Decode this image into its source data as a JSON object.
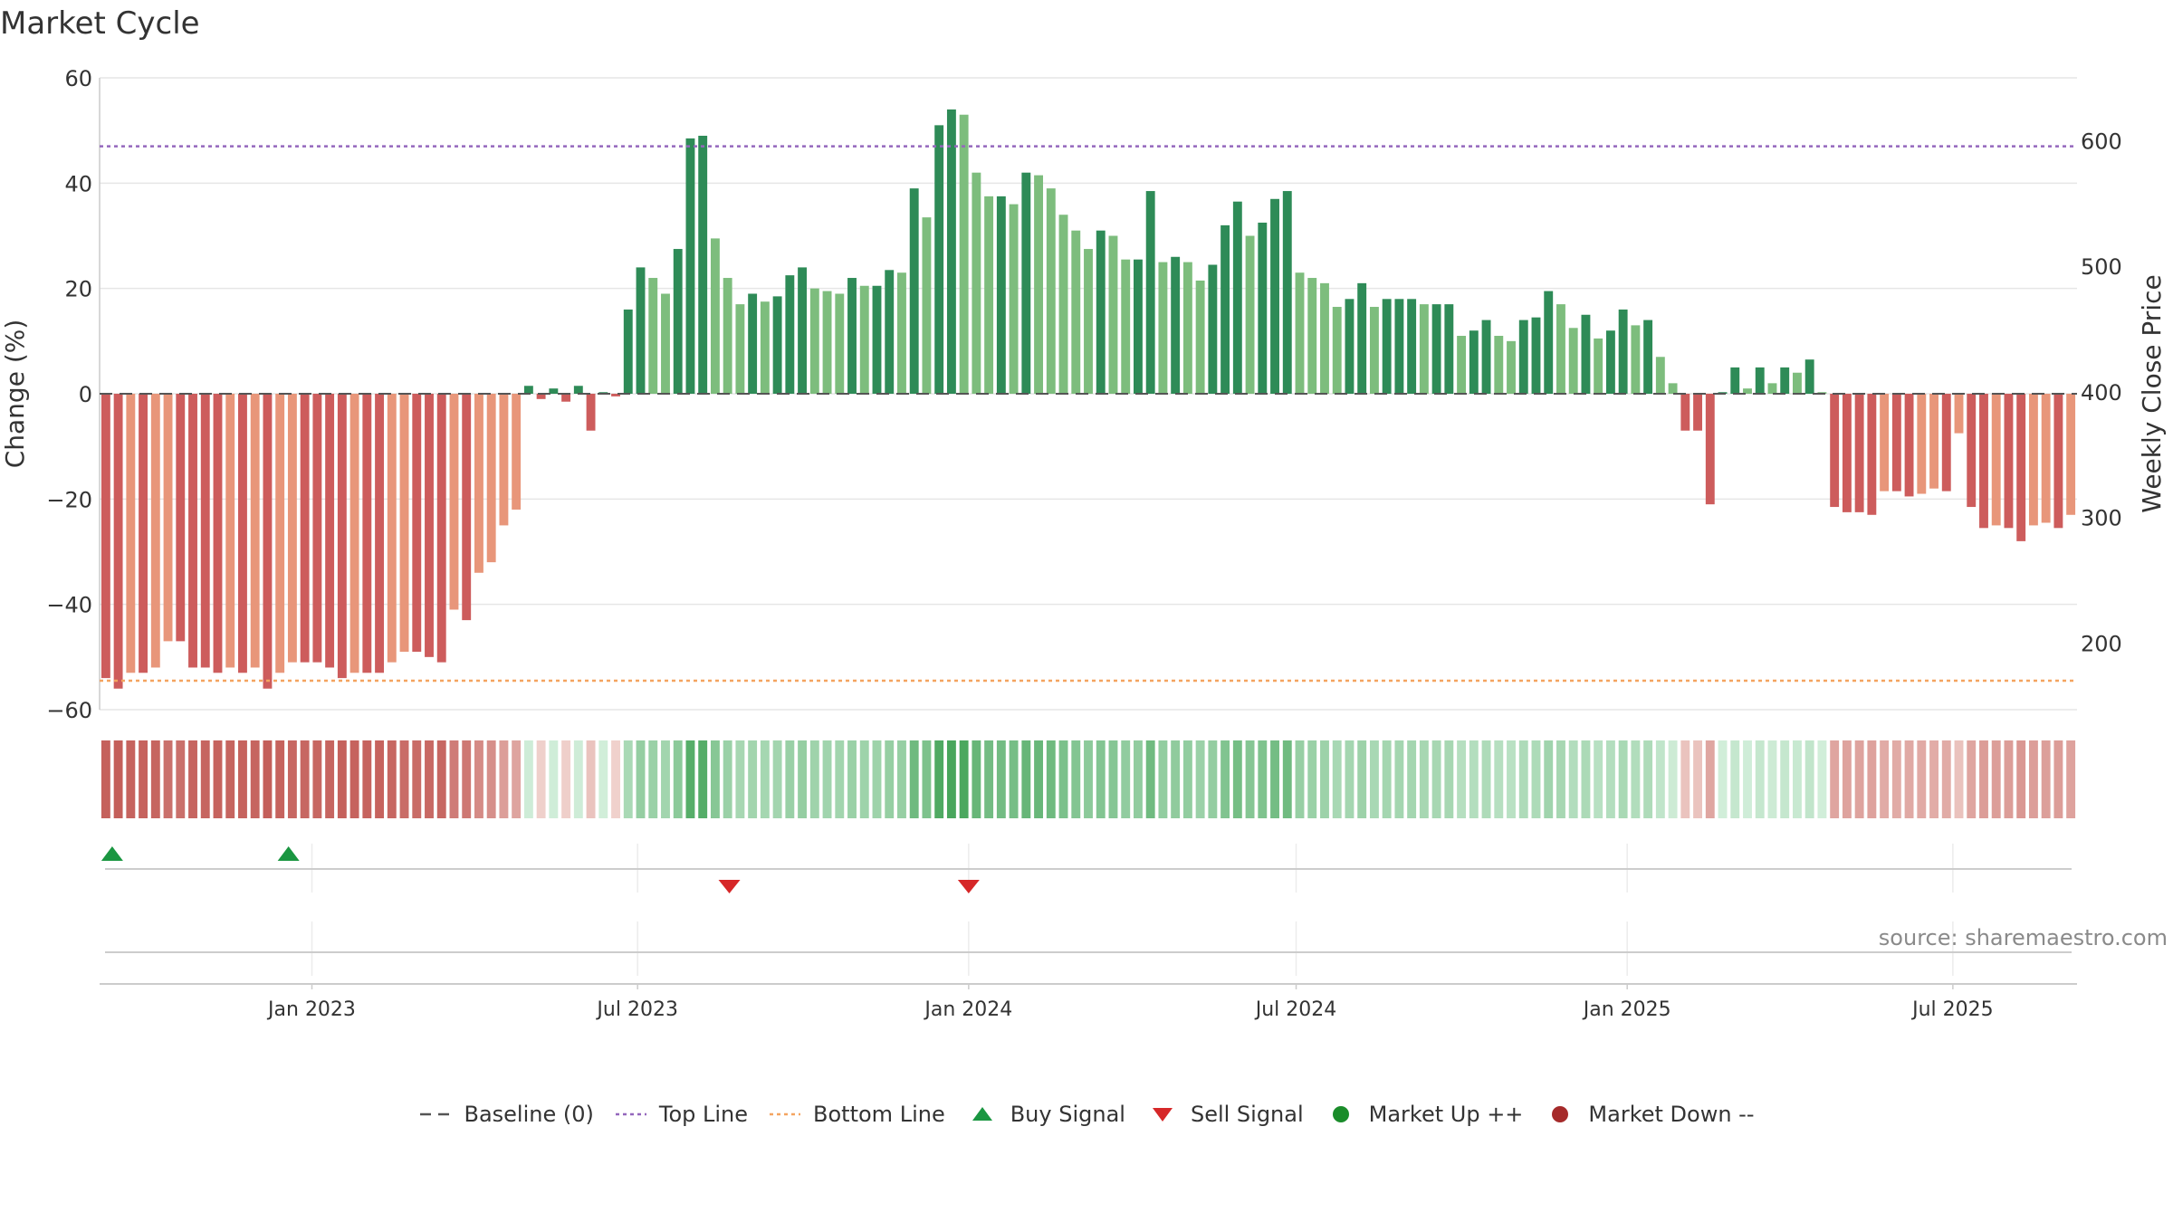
{
  "title": "Market Cycle",
  "source": "source: sharemaestro.com",
  "colors": {
    "strong_up": "#2e8b57",
    "mild_up": "#7dbd7d",
    "strong_down": "#cd5c5c",
    "mild_down": "#e8967a",
    "top_line": "#9467bd",
    "bottom_line": "#f4a460",
    "buy": "#1a9641",
    "sell": "#d62728",
    "market_up": "#1a8c2a",
    "market_down": "#a52a2a",
    "grid": "#e6e6e6",
    "axis": "#cccccc"
  },
  "chart_data": {
    "type": "bar",
    "ylabel": "Change (%)",
    "y2label": "Weekly Close Price",
    "ylim": [
      -60,
      60
    ],
    "yticks": [
      "60",
      "40",
      "20",
      "0",
      "−20",
      "−40",
      "−60"
    ],
    "y2lim": [
      147,
      650
    ],
    "y2ticks": [
      "600",
      "500",
      "400",
      "300",
      "200"
    ],
    "x_start": "2022-09-05",
    "x_end": "2025-09-08",
    "xticks": [
      {
        "date": "2023-01-01",
        "label": "Jan 2023"
      },
      {
        "date": "2023-07-01",
        "label": "Jul 2023"
      },
      {
        "date": "2024-01-01",
        "label": "Jan 2024"
      },
      {
        "date": "2024-07-01",
        "label": "Jul 2024"
      },
      {
        "date": "2025-01-01",
        "label": "Jan 2025"
      },
      {
        "date": "2025-07-01",
        "label": "Jul 2025"
      }
    ],
    "top_line": 47,
    "bottom_line": -54.5,
    "baseline": 0,
    "weekly_change": [
      -54,
      -56,
      -53,
      -53,
      -52,
      -47,
      -47,
      -52,
      -52,
      -53,
      -52,
      -53,
      -52,
      -56,
      -53,
      -51,
      -51,
      -51,
      -52,
      -54,
      -53,
      -53,
      -53,
      -51,
      -49,
      -49,
      -50,
      -51,
      -41,
      -43,
      -34,
      -32,
      -25,
      -22,
      1.5,
      -1,
      1,
      -1.5,
      1.5,
      -7,
      0.3,
      -0.5,
      16,
      24,
      22,
      19,
      27.5,
      48.5,
      49,
      29.5,
      22,
      17,
      19,
      17.5,
      18.5,
      22.5,
      24,
      20,
      19.5,
      19,
      22,
      20.5,
      20.5,
      23.5,
      23,
      39,
      33.5,
      51,
      54,
      53,
      42,
      37.5,
      37.5,
      36,
      42,
      41.5,
      39,
      34,
      31,
      27.5,
      31,
      30,
      25.5,
      25.5,
      38.5,
      25,
      26,
      25,
      21.5,
      24.5,
      32,
      36.5,
      30,
      32.5,
      37,
      38.5,
      23,
      22,
      21,
      16.5,
      18,
      21,
      16.5,
      18,
      18,
      18,
      17,
      17,
      17,
      11,
      12,
      14,
      11,
      10,
      14,
      14.5,
      19.5,
      17,
      12.5,
      15,
      10.5,
      12,
      16,
      13,
      14,
      7,
      2,
      -7,
      -7,
      -21,
      0.3,
      5,
      1,
      5,
      2,
      5,
      4,
      6.5,
      0.3,
      -21.5,
      -22.5,
      -22.5,
      -23,
      -18.5,
      -18.5,
      -19.5,
      -19,
      -18,
      -18.5,
      -7.5,
      -21.5,
      -25.5,
      -25,
      -25.5,
      -28,
      -25,
      -24.5,
      -25.5,
      -23
    ],
    "signals": {
      "buy": [
        "2022-09-12",
        "2022-12-19"
      ],
      "sell": [
        "2023-08-21",
        "2024-01-01"
      ]
    }
  },
  "legend": [
    {
      "symbol": "dash-dark",
      "label": "Baseline (0)"
    },
    {
      "symbol": "dot-purple",
      "label": "Top Line"
    },
    {
      "symbol": "dot-orange",
      "label": "Bottom Line"
    },
    {
      "symbol": "triangle-up",
      "label": "Buy Signal"
    },
    {
      "symbol": "triangle-down",
      "label": "Sell Signal"
    },
    {
      "symbol": "circle-green",
      "label": "Market Up ++"
    },
    {
      "symbol": "circle-red",
      "label": "Market Down --"
    }
  ]
}
